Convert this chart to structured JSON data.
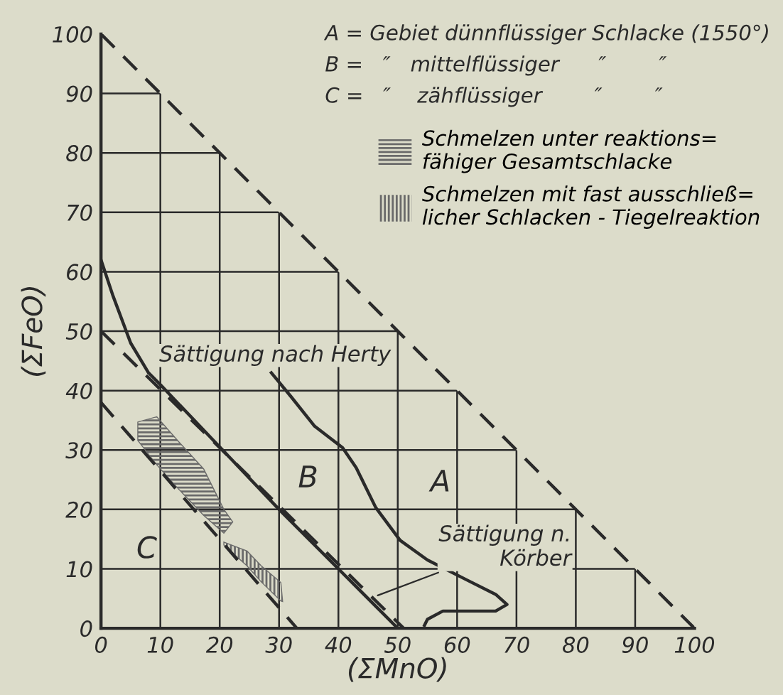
{
  "chart_data": {
    "type": "line",
    "xlabel": "(ΣMnO)",
    "ylabel": "(ΣFeO)",
    "xlim": [
      0,
      100
    ],
    "ylim": [
      0,
      100
    ],
    "xticks": [
      0,
      10,
      20,
      30,
      40,
      50,
      60,
      70,
      80,
      90,
      100
    ],
    "yticks": [
      0,
      10,
      20,
      30,
      40,
      50,
      60,
      70,
      80,
      90,
      100
    ],
    "grid": true,
    "marker": "none",
    "legend": "top right",
    "series": [
      {
        "color": "#2a2a2a",
        "line_style": "dashed",
        "x": [
          0,
          100
        ],
        "values": [
          100,
          0
        ]
      },
      {
        "color": "#2a2a2a",
        "line_style": "dashed",
        "x": [
          0,
          51
        ],
        "values": [
          50,
          0
        ]
      },
      {
        "color": "#2a2a2a",
        "line_style": "solid",
        "x": [
          0,
          2,
          5,
          8,
          10,
          20,
          30,
          40,
          50
        ],
        "values": [
          62,
          56,
          48,
          43,
          41,
          30.5,
          20,
          10,
          0
        ]
      },
      {
        "color": "#2a2a2a",
        "line_style": "solid",
        "x": [
          28.7,
          32,
          36,
          40.7,
          43,
          46.3,
          50.4,
          55,
          61.7,
          66.5,
          68.4,
          66.5,
          57.6,
          55,
          54.5
        ],
        "values": [
          43,
          39,
          34,
          30.4,
          27,
          20.3,
          14.8,
          11.5,
          8.1,
          5.7,
          4,
          2.9,
          2.9,
          1.5,
          0.5
        ]
      },
      {
        "color": "#2a2a2a",
        "line_style": "dashed",
        "x": [
          0,
          33
        ],
        "values": [
          38,
          0
        ]
      },
      {
        "type": "area",
        "name": "Schmelzen unter reaktions=\nfähiger Gesamtschlacke",
        "color": "#6a6a6a",
        "x": [
          6.2,
          9.4,
          13,
          17.3,
          20.7,
          22.2,
          20.7,
          17.3,
          13,
          9.4,
          6.2
        ],
        "values": [
          34.7,
          35.6,
          31.5,
          26.8,
          20,
          17.9,
          16,
          19,
          23.5,
          27.5,
          31.6
        ]
      },
      {
        "type": "area",
        "name": "Schmelzen mit fast ausschließ=\nlicher Schlacken - Tiegelreaktion",
        "color": "#6a6a6a",
        "x": [
          20.7,
          24.6,
          27,
          30.3,
          30.6,
          30.3,
          27,
          24.6,
          20.7
        ],
        "values": [
          14.5,
          13,
          10.5,
          7.7,
          4.5,
          4.6,
          7.8,
          10.5,
          14
        ]
      }
    ],
    "annotations": [
      "A = Gebiet dünnflüssiger Schlacke (1550°)",
      "B =   ″   mittelflüssiger      ″        ″",
      "C =   ″    zähflüssiger        ″        ″",
      "A",
      "B",
      "C",
      "Sättigung nach Herty",
      {
        "text": "Sättigung n.\nKörber",
        "x": 46,
        "y": 5.3
      }
    ]
  }
}
